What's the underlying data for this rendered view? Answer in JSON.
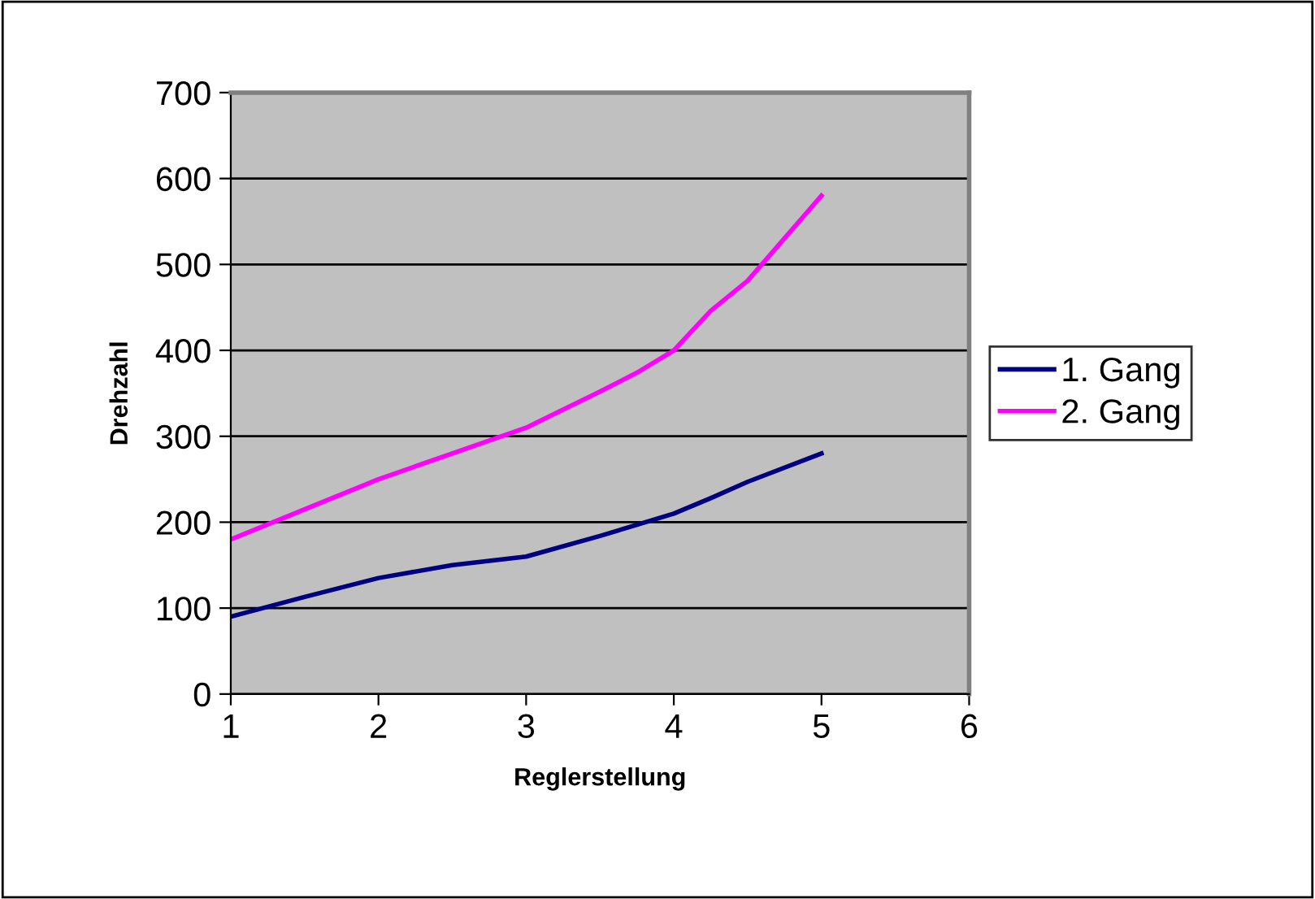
{
  "chart_data": {
    "type": "line",
    "xlabel": "Reglerstellung",
    "ylabel": "Drehzahl",
    "x": [
      1,
      1.5,
      2,
      2.5,
      3,
      3.5,
      3.75,
      4,
      4.25,
      4.5,
      5
    ],
    "series": [
      {
        "name": "1. Gang",
        "color": "#000080",
        "values": [
          90,
          113,
          135,
          150,
          160,
          184,
          197,
          210,
          228,
          247,
          280
        ]
      },
      {
        "name": "2. Gang",
        "color": "#ff00ff",
        "values": [
          180,
          215,
          250,
          280,
          310,
          352,
          374,
          400,
          446,
          481,
          580
        ]
      }
    ],
    "xlim": [
      1,
      6
    ],
    "xticks": [
      1,
      2,
      3,
      4,
      5,
      6
    ],
    "ylim": [
      0,
      700
    ],
    "yticks": [
      0,
      100,
      200,
      300,
      400,
      500,
      600,
      700
    ],
    "grid": "y",
    "legend": "right",
    "marker": "none",
    "line_style": "solid"
  }
}
